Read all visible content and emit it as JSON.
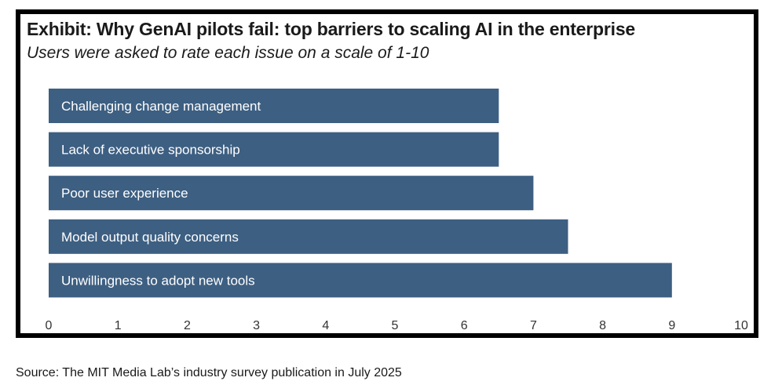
{
  "exhibit": {
    "title": "Exhibit: Why GenAI pilots fail: top barriers to scaling AI in the enterprise",
    "subtitle": "Users were asked to rate each issue on a scale of 1-10"
  },
  "chart_data": {
    "type": "bar",
    "orientation": "horizontal",
    "title": "Exhibit: Why GenAI pilots fail: top barriers to scaling AI in the enterprise",
    "subtitle": "Users were asked to rate each issue on a scale of 1-10",
    "categories": [
      "Challenging change management",
      "Lack of executive sponsorship",
      "Poor user experience",
      "Model output quality concerns",
      "Unwillingness to adopt new tools"
    ],
    "values": [
      6.5,
      6.5,
      7.0,
      7.5,
      9.0
    ],
    "xlim": [
      0,
      10
    ],
    "xticks": [
      "0",
      "1",
      "2",
      "3",
      "4",
      "5",
      "6",
      "7",
      "8",
      "9",
      "10"
    ],
    "bar_color": "#3d5f82",
    "grid": false,
    "legend": "none"
  },
  "footer": {
    "source": "Source: The MIT Media Lab’s industry survey publication in July 2025"
  }
}
